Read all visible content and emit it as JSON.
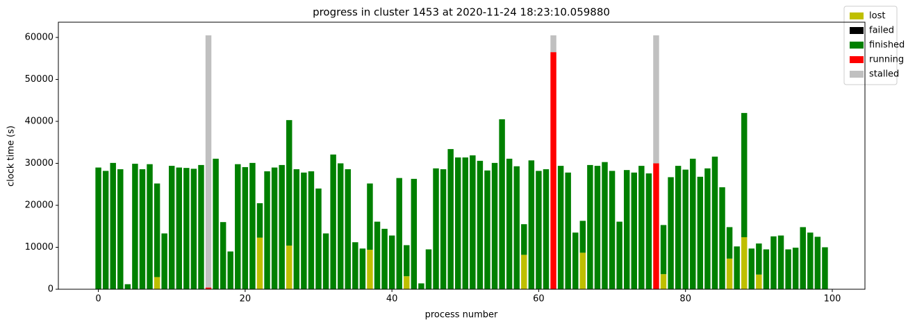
{
  "chart_data": {
    "type": "bar",
    "stacked": true,
    "title": "progress in cluster 1453 at 2020-11-24 18:23:10.059880",
    "x_label": "process number",
    "y_label": "clock time (s)",
    "x": [
      0,
      1,
      2,
      3,
      4,
      5,
      6,
      7,
      8,
      9,
      10,
      11,
      12,
      13,
      14,
      15,
      16,
      17,
      18,
      19,
      20,
      21,
      22,
      23,
      24,
      25,
      26,
      27,
      28,
      29,
      30,
      31,
      32,
      33,
      34,
      35,
      36,
      37,
      38,
      39,
      40,
      41,
      42,
      43,
      44,
      45,
      46,
      47,
      48,
      49,
      50,
      51,
      52,
      53,
      54,
      55,
      56,
      57,
      58,
      59,
      60,
      61,
      62,
      63,
      64,
      65,
      66,
      67,
      68,
      69,
      70,
      71,
      72,
      73,
      74,
      75,
      76,
      77,
      78,
      79,
      80,
      81,
      82,
      83,
      84,
      85,
      86,
      87,
      88,
      89,
      90,
      91,
      92,
      93,
      94,
      95,
      96,
      97,
      98,
      99
    ],
    "series": [
      {
        "name": "lost",
        "color": "#bfbf00",
        "values": [
          0,
          0,
          0,
          0,
          0,
          0,
          0,
          0,
          2900,
          0,
          0,
          0,
          0,
          0,
          0,
          0,
          0,
          0,
          0,
          0,
          0,
          0,
          12300,
          0,
          0,
          0,
          10400,
          0,
          0,
          0,
          0,
          0,
          0,
          0,
          0,
          0,
          0,
          9400,
          0,
          0,
          0,
          0,
          3100,
          0,
          0,
          0,
          0,
          0,
          0,
          0,
          0,
          0,
          0,
          0,
          0,
          0,
          0,
          0,
          8200,
          0,
          0,
          0,
          0,
          0,
          0,
          0,
          8700,
          0,
          0,
          0,
          0,
          0,
          0,
          0,
          0,
          0,
          0,
          3600,
          0,
          0,
          0,
          0,
          0,
          0,
          0,
          0,
          7300,
          0,
          12400,
          0,
          3500,
          0,
          0,
          0,
          0,
          0,
          0,
          0,
          0,
          0
        ]
      },
      {
        "name": "failed",
        "color": "#000000",
        "values": [
          0,
          0,
          0,
          0,
          0,
          0,
          0,
          0,
          0,
          0,
          0,
          0,
          0,
          0,
          0,
          0,
          0,
          0,
          0,
          0,
          0,
          0,
          0,
          0,
          0,
          0,
          0,
          0,
          0,
          0,
          0,
          0,
          0,
          0,
          0,
          0,
          0,
          0,
          0,
          0,
          0,
          0,
          0,
          0,
          0,
          0,
          0,
          0,
          0,
          0,
          0,
          0,
          0,
          0,
          0,
          0,
          0,
          0,
          0,
          0,
          0,
          0,
          0,
          0,
          0,
          0,
          0,
          0,
          0,
          0,
          0,
          0,
          0,
          0,
          0,
          0,
          0,
          0,
          0,
          0,
          0,
          0,
          0,
          0,
          0,
          0,
          0,
          0,
          0,
          0,
          0,
          0,
          0,
          0,
          0,
          0,
          0,
          0,
          0,
          0
        ]
      },
      {
        "name": "finished",
        "color": "#008000",
        "values": [
          29000,
          28200,
          30100,
          28600,
          1200,
          29900,
          28600,
          29800,
          22300,
          13300,
          29400,
          29000,
          28900,
          28700,
          29600,
          0,
          31100,
          16000,
          9000,
          29800,
          29100,
          30100,
          8200,
          28100,
          29000,
          29600,
          29900,
          28600,
          27800,
          28100,
          24000,
          13300,
          32100,
          30000,
          28600,
          11200,
          9700,
          15800,
          16100,
          14400,
          12800,
          26500,
          7400,
          26300,
          1400,
          9500,
          28800,
          28600,
          33400,
          31400,
          31400,
          31900,
          30600,
          28300,
          30100,
          40500,
          31100,
          29300,
          7300,
          30700,
          28200,
          28600,
          0,
          29400,
          27800,
          13500,
          7600,
          29600,
          29400,
          30300,
          28200,
          16100,
          28400,
          27800,
          29400,
          27600,
          0,
          11700,
          26700,
          29400,
          28500,
          31100,
          26800,
          28800,
          31600,
          24300,
          7500,
          10200,
          29600,
          9700,
          7400,
          9500,
          12600,
          12800,
          9500,
          9900,
          14800,
          13500,
          12500,
          10000
        ]
      },
      {
        "name": "running",
        "color": "#ff0000",
        "values": [
          0,
          0,
          0,
          0,
          0,
          0,
          0,
          0,
          0,
          0,
          0,
          0,
          0,
          0,
          0,
          400,
          0,
          0,
          0,
          0,
          0,
          0,
          0,
          0,
          0,
          0,
          0,
          0,
          0,
          0,
          0,
          0,
          0,
          0,
          0,
          0,
          0,
          0,
          0,
          0,
          0,
          0,
          0,
          0,
          0,
          0,
          0,
          0,
          0,
          0,
          0,
          0,
          0,
          0,
          0,
          0,
          0,
          0,
          0,
          0,
          0,
          0,
          56500,
          0,
          0,
          0,
          0,
          0,
          0,
          0,
          0,
          0,
          0,
          0,
          0,
          0,
          30000,
          0,
          0,
          0,
          0,
          0,
          0,
          0,
          0,
          0,
          0,
          0,
          0,
          0,
          0,
          0,
          0,
          0,
          0,
          0,
          0,
          0,
          0,
          0
        ]
      },
      {
        "name": "stalled",
        "color": "#c0c0c0",
        "values": [
          0,
          0,
          0,
          0,
          0,
          0,
          0,
          0,
          0,
          0,
          0,
          0,
          0,
          0,
          0,
          60100,
          0,
          0,
          0,
          0,
          0,
          0,
          0,
          0,
          0,
          0,
          0,
          0,
          0,
          0,
          0,
          0,
          0,
          0,
          0,
          0,
          0,
          0,
          0,
          0,
          0,
          0,
          0,
          0,
          0,
          0,
          0,
          0,
          0,
          0,
          0,
          0,
          0,
          0,
          0,
          0,
          0,
          0,
          0,
          0,
          0,
          0,
          4000,
          0,
          0,
          0,
          0,
          0,
          0,
          0,
          0,
          0,
          0,
          0,
          0,
          0,
          30500,
          0,
          0,
          0,
          0,
          0,
          0,
          0,
          0,
          0,
          0,
          0,
          0,
          0,
          0,
          0,
          0,
          0,
          0,
          0,
          0,
          0,
          0,
          0
        ]
      }
    ],
    "xlim": [
      -5.45,
      104.45
    ],
    "xticks": [
      0,
      20,
      40,
      60,
      80,
      100
    ],
    "ylim": [
      0,
      63630
    ],
    "yticks": [
      0,
      10000,
      20000,
      30000,
      40000,
      50000,
      60000
    ]
  }
}
